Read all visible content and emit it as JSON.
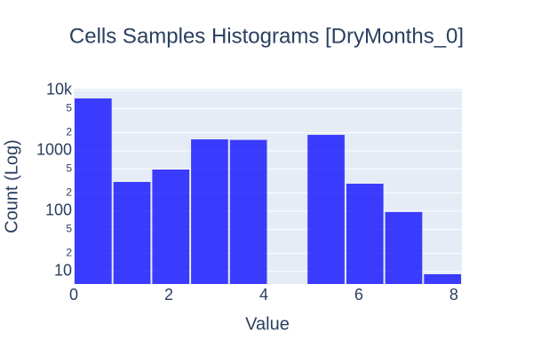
{
  "chart_data": {
    "type": "histogram",
    "title": "Cells Samples Histograms [DryMonths_0]",
    "x_label": "Value",
    "y_label": "Count (Log)",
    "bins": [
      0,
      0.817,
      1.634,
      2.451,
      3.268,
      4.085,
      4.902,
      5.719,
      6.536,
      7.353,
      8.17
    ],
    "values": [
      7400,
      305,
      490,
      1550,
      1520,
      0,
      1840,
      285,
      97,
      9
    ],
    "color": "rgba(0,0,255,0.75)",
    "xlim": [
      0,
      8.17
    ],
    "xticks": [
      0,
      2,
      4,
      6,
      8
    ],
    "ylim": [
      6.2,
      10700
    ],
    "log_y": true,
    "yticks": [
      {
        "value": 10,
        "label": "10"
      },
      {
        "value": 20,
        "label": "2"
      },
      {
        "value": 50,
        "label": "5"
      },
      100,
      {
        "value": 200,
        "label": "2"
      },
      {
        "value": 500,
        "label": "5"
      },
      1000,
      {
        "value": 2000,
        "label": "2"
      },
      {
        "value": 5000,
        "label": "5"
      },
      {
        "value": 10000,
        "label": "10k"
      }
    ],
    "grid": true
  }
}
